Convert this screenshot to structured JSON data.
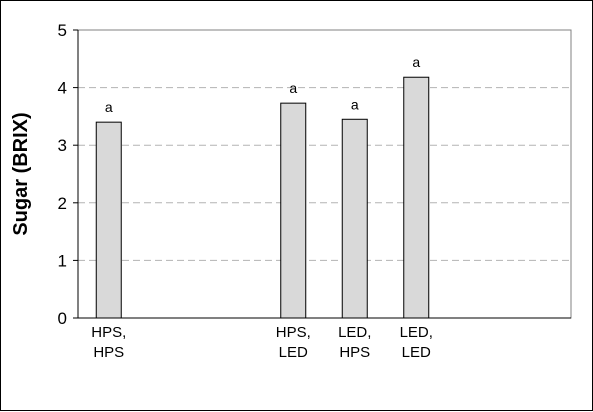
{
  "chart_data": {
    "type": "bar",
    "title": "",
    "xlabel": "",
    "ylabel": "Sugar (BRIX)",
    "ylim": [
      0,
      5
    ],
    "yticks": [
      0,
      1,
      2,
      3,
      4,
      5
    ],
    "grid": "horizontal dashed",
    "bar_color": "#d9d9d9",
    "categories": [
      {
        "line1": "HPS,",
        "line2": "HPS",
        "slot": 1
      },
      {
        "line1": "HPS,",
        "line2": "LED",
        "slot": 4
      },
      {
        "line1": "LED,",
        "line2": "HPS",
        "slot": 5
      },
      {
        "line1": "LED,",
        "line2": "LED",
        "slot": 6
      }
    ],
    "values": [
      3.4,
      3.73,
      3.45,
      4.18
    ],
    "significance_labels": [
      "a",
      "a",
      "a",
      "a"
    ]
  }
}
